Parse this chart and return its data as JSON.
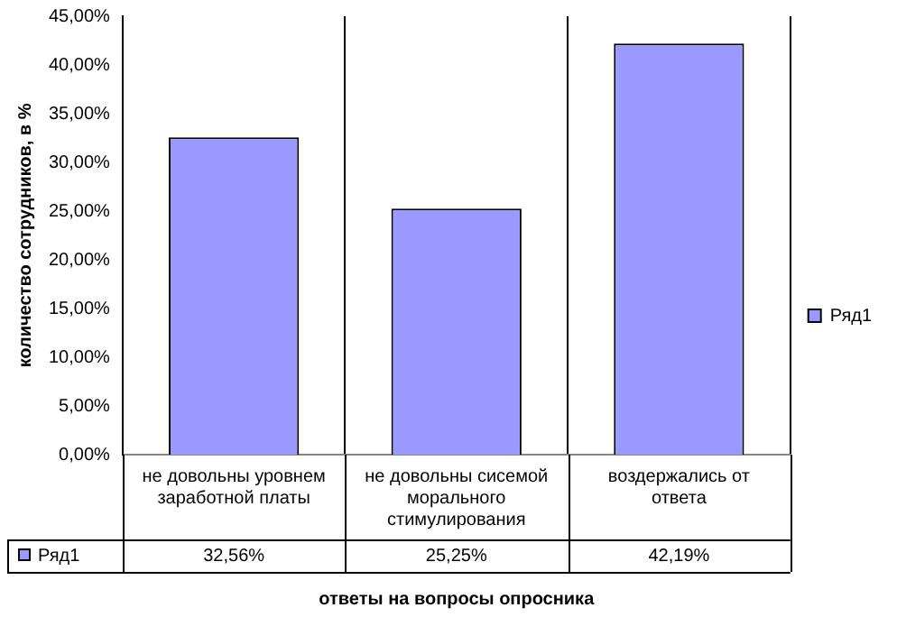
{
  "chart_data": {
    "type": "bar",
    "xlabel": "ответы на вопросы опросника",
    "ylabel": "количество сотрудников, в %",
    "categories": [
      "не довольны уровнем заработной платы",
      "не довольны сисемой морального стимулирования",
      "воздержались от ответа"
    ],
    "series": [
      {
        "name": "Ряд1",
        "color": "#9999ff",
        "values": [
          32.56,
          25.25,
          42.19
        ],
        "value_labels": [
          "32,56%",
          "25,25%",
          "42,19%"
        ]
      }
    ],
    "ylim": [
      0,
      45
    ],
    "yticks": [
      {
        "value": 0,
        "label": "0,00%"
      },
      {
        "value": 5,
        "label": "5,00%"
      },
      {
        "value": 10,
        "label": "10,00%"
      },
      {
        "value": 15,
        "label": "15,00%"
      },
      {
        "value": 20,
        "label": "20,00%"
      },
      {
        "value": 25,
        "label": "25,00%"
      },
      {
        "value": 30,
        "label": "30,00%"
      },
      {
        "value": 35,
        "label": "35,00%"
      },
      {
        "value": 40,
        "label": "40,00%"
      },
      {
        "value": 45,
        "label": "45,00%"
      }
    ],
    "grid": "x",
    "legend": "right"
  }
}
